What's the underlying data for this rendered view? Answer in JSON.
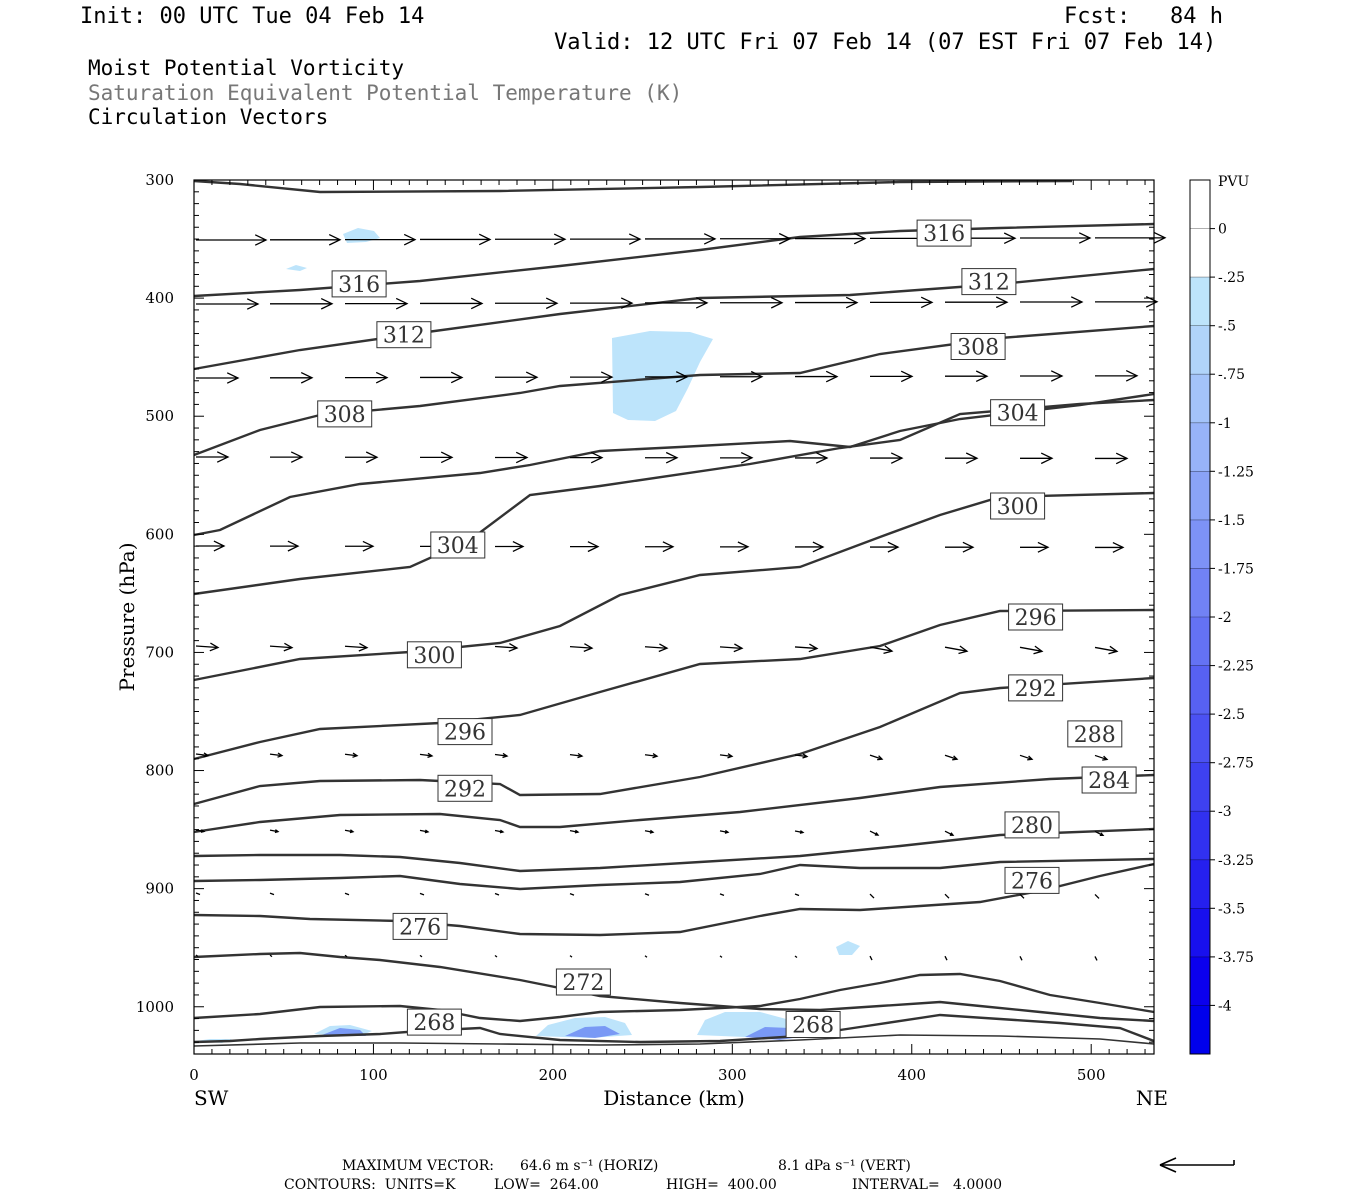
{
  "header": {
    "init": "Init: 00 UTC Tue 04 Feb 14",
    "fcst": "Fcst:   84 h",
    "valid": "Valid: 12 UTC Fri 07 Feb 14 (07 EST Fri 07 Feb 14)"
  },
  "titles": {
    "line1": "Moist Potential Vorticity",
    "line2": "Saturation Equivalent Potential Temperature (K)",
    "line3": "Circulation Vectors"
  },
  "footer": {
    "max_vector_prefix": "MAXIMUM VECTOR:",
    "horiz": "64.6 m s⁻¹ (HORIZ)",
    "vert": "8.1 dPa s⁻¹ (VERT)",
    "contours_units": "CONTOURS:  UNITS=K",
    "contours_low": "LOW=  264.00",
    "contours_high": "HIGH=  400.00",
    "contours_interval": "INTERVAL=   4.0000"
  },
  "colors": {
    "contour": "#333333",
    "pv_fill_light": "#bde4fb",
    "pv_fill_mid": "#6d8cf3",
    "pv_fill_dark": "#3333ee"
  },
  "chart_data": {
    "type": "cross-section",
    "xlabel": "Distance (km)",
    "ylabel": "Pressure (hPa)",
    "xlim": [
      0,
      535
    ],
    "ylim": [
      1040,
      300
    ],
    "x_ticks": [
      0,
      100,
      200,
      300,
      400,
      500
    ],
    "y_ticks": [
      300,
      400,
      500,
      600,
      700,
      800,
      900,
      1000
    ],
    "endpoints": {
      "left": "SW",
      "right": "NE"
    },
    "colorbar": {
      "title": "PVU",
      "levels": [
        "0",
        "-.25",
        "-.5",
        "-.75",
        "-1",
        "-1.25",
        "-1.5",
        "-1.75",
        "-2",
        "-2.25",
        "-2.5",
        "-2.75",
        "-3",
        "-3.25",
        "-3.5",
        "-3.75",
        "-4"
      ],
      "colors": [
        "#ffffff",
        "#ffffff",
        "#bde4fb",
        "#b0d4fa",
        "#a3c3f9",
        "#97b3f8",
        "#8aa3f7",
        "#7d92f6",
        "#7182f5",
        "#6472f4",
        "#5761f3",
        "#4b51f2",
        "#3e41f1",
        "#3131f0",
        "#2520ef",
        "#1810ee",
        "#0b00ed",
        "#0000ec"
      ]
    },
    "contour_labels": [
      {
        "value": "316",
        "x": 92,
        "p": 388
      },
      {
        "value": "316",
        "x": 418,
        "p": 345
      },
      {
        "value": "312",
        "x": 117,
        "p": 431
      },
      {
        "value": "312",
        "x": 443,
        "p": 386
      },
      {
        "value": "308",
        "x": 84,
        "p": 498
      },
      {
        "value": "308",
        "x": 437,
        "p": 441
      },
      {
        "value": "304",
        "x": 147,
        "p": 609
      },
      {
        "value": "304",
        "x": 459,
        "p": 497
      },
      {
        "value": "300",
        "x": 134,
        "p": 702
      },
      {
        "value": "300",
        "x": 459,
        "p": 576
      },
      {
        "value": "296",
        "x": 151,
        "p": 767
      },
      {
        "value": "296",
        "x": 469,
        "p": 670
      },
      {
        "value": "292",
        "x": 151,
        "p": 815
      },
      {
        "value": "292",
        "x": 469,
        "p": 730
      },
      {
        "value": "288",
        "x": 502,
        "p": 769
      },
      {
        "value": "284",
        "x": 510,
        "p": 808
      },
      {
        "value": "280",
        "x": 467,
        "p": 846
      },
      {
        "value": "276",
        "x": 126,
        "p": 932
      },
      {
        "value": "276",
        "x": 467,
        "p": 893
      },
      {
        "value": "272",
        "x": 217,
        "p": 979
      },
      {
        "value": "268",
        "x": 134,
        "p": 1013
      },
      {
        "value": "268",
        "x": 345,
        "p": 1015
      }
    ]
  }
}
